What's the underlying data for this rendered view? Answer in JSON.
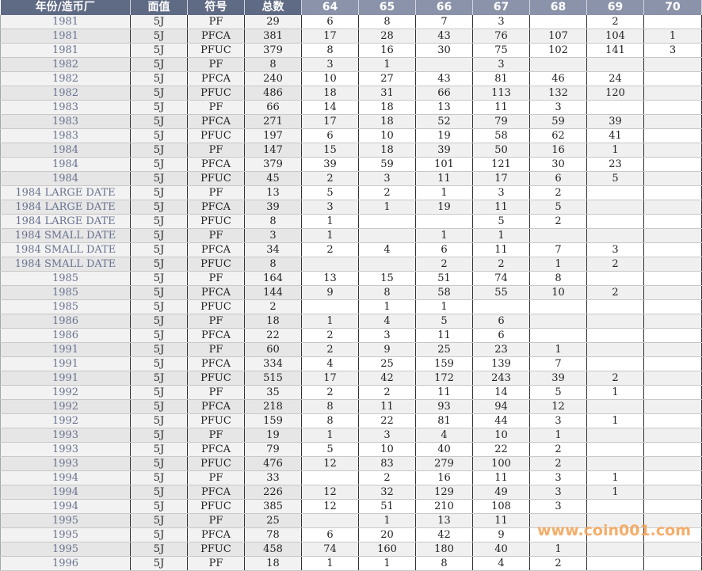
{
  "headers": [
    "年份/造币厂",
    "面值",
    "符号",
    "总数",
    "64",
    "65",
    "66",
    "67",
    "68",
    "69",
    "70"
  ],
  "rows": [
    [
      "1981",
      "5J",
      "PF",
      "29",
      "6",
      "8",
      "7",
      "3",
      "",
      "2",
      ""
    ],
    [
      "1981",
      "5J",
      "PFCA",
      "381",
      "17",
      "28",
      "43",
      "76",
      "107",
      "104",
      "1"
    ],
    [
      "1981",
      "5J",
      "PFUC",
      "379",
      "8",
      "16",
      "30",
      "75",
      "102",
      "141",
      "3"
    ],
    [
      "1982",
      "5J",
      "PF",
      "8",
      "3",
      "1",
      "",
      "3",
      "",
      "",
      ""
    ],
    [
      "1982",
      "5J",
      "PFCA",
      "240",
      "10",
      "27",
      "43",
      "81",
      "46",
      "24",
      ""
    ],
    [
      "1982",
      "5J",
      "PFUC",
      "486",
      "18",
      "31",
      "66",
      "113",
      "132",
      "120",
      ""
    ],
    [
      "1983",
      "5J",
      "PF",
      "66",
      "14",
      "18",
      "13",
      "11",
      "3",
      "",
      ""
    ],
    [
      "1983",
      "5J",
      "PFCA",
      "271",
      "17",
      "18",
      "52",
      "79",
      "59",
      "39",
      ""
    ],
    [
      "1983",
      "5J",
      "PFUC",
      "197",
      "6",
      "10",
      "19",
      "58",
      "62",
      "41",
      ""
    ],
    [
      "1984",
      "5J",
      "PF",
      "147",
      "15",
      "18",
      "39",
      "50",
      "16",
      "1",
      ""
    ],
    [
      "1984",
      "5J",
      "PFCA",
      "379",
      "39",
      "59",
      "101",
      "121",
      "30",
      "23",
      ""
    ],
    [
      "1984",
      "5J",
      "PFUC",
      "45",
      "2",
      "3",
      "11",
      "17",
      "6",
      "5",
      ""
    ],
    [
      "1984 LARGE DATE",
      "5J",
      "PF",
      "13",
      "5",
      "2",
      "1",
      "3",
      "2",
      "",
      ""
    ],
    [
      "1984 LARGE DATE",
      "5J",
      "PFCA",
      "39",
      "3",
      "1",
      "19",
      "11",
      "5",
      "",
      ""
    ],
    [
      "1984 LARGE DATE",
      "5J",
      "PFUC",
      "8",
      "1",
      "",
      "",
      "5",
      "2",
      "",
      ""
    ],
    [
      "1984 SMALL DATE",
      "5J",
      "PF",
      "3",
      "1",
      "",
      "1",
      "1",
      "",
      "",
      ""
    ],
    [
      "1984 SMALL DATE",
      "5J",
      "PFCA",
      "34",
      "2",
      "4",
      "6",
      "11",
      "7",
      "3",
      ""
    ],
    [
      "1984 SMALL DATE",
      "5J",
      "PFUC",
      "8",
      "",
      "",
      "2",
      "2",
      "1",
      "2",
      ""
    ],
    [
      "1985",
      "5J",
      "PF",
      "164",
      "13",
      "15",
      "51",
      "74",
      "8",
      "",
      ""
    ],
    [
      "1985",
      "5J",
      "PFCA",
      "144",
      "9",
      "8",
      "58",
      "55",
      "10",
      "2",
      ""
    ],
    [
      "1985",
      "5J",
      "PFUC",
      "2",
      "",
      "1",
      "1",
      "",
      "",
      "",
      ""
    ],
    [
      "1986",
      "5J",
      "PF",
      "18",
      "1",
      "4",
      "5",
      "6",
      "",
      "",
      ""
    ],
    [
      "1986",
      "5J",
      "PFCA",
      "22",
      "2",
      "3",
      "11",
      "6",
      "",
      "",
      ""
    ],
    [
      "1991",
      "5J",
      "PF",
      "60",
      "2",
      "9",
      "25",
      "23",
      "1",
      "",
      ""
    ],
    [
      "1991",
      "5J",
      "PFCA",
      "334",
      "4",
      "25",
      "159",
      "139",
      "7",
      "",
      ""
    ],
    [
      "1991",
      "5J",
      "PFUC",
      "515",
      "17",
      "42",
      "172",
      "243",
      "39",
      "2",
      ""
    ],
    [
      "1992",
      "5J",
      "PF",
      "35",
      "2",
      "2",
      "11",
      "14",
      "5",
      "1",
      ""
    ],
    [
      "1992",
      "5J",
      "PFCA",
      "218",
      "8",
      "11",
      "93",
      "94",
      "12",
      "",
      ""
    ],
    [
      "1992",
      "5J",
      "PFUC",
      "159",
      "8",
      "22",
      "81",
      "44",
      "3",
      "1",
      ""
    ],
    [
      "1993",
      "5J",
      "PF",
      "19",
      "1",
      "3",
      "4",
      "10",
      "1",
      "",
      ""
    ],
    [
      "1993",
      "5J",
      "PFCA",
      "79",
      "5",
      "10",
      "40",
      "22",
      "2",
      "",
      ""
    ],
    [
      "1993",
      "5J",
      "PFUC",
      "476",
      "12",
      "83",
      "279",
      "100",
      "2",
      "",
      ""
    ],
    [
      "1994",
      "5J",
      "PF",
      "33",
      "",
      "2",
      "16",
      "11",
      "3",
      "1",
      ""
    ],
    [
      "1994",
      "5J",
      "PFCA",
      "226",
      "12",
      "32",
      "129",
      "49",
      "3",
      "1",
      ""
    ],
    [
      "1994",
      "5J",
      "PFUC",
      "385",
      "12",
      "51",
      "210",
      "108",
      "3",
      "",
      ""
    ],
    [
      "1995",
      "5J",
      "PF",
      "25",
      "",
      "1",
      "13",
      "11",
      "",
      "",
      ""
    ],
    [
      "1995",
      "5J",
      "PFCA",
      "78",
      "6",
      "20",
      "42",
      "9",
      "",
      "",
      ""
    ],
    [
      "1995",
      "5J",
      "PFUC",
      "458",
      "74",
      "160",
      "180",
      "40",
      "1",
      "",
      ""
    ],
    [
      "1996",
      "5J",
      "PF",
      "18",
      "1",
      "1",
      "8",
      "4",
      "2",
      "",
      ""
    ]
  ],
  "watermark": "www.coin001.com",
  "colors": {
    "header_main": "#5f6a84",
    "header_grade": "#8a93a9",
    "year_text": "#69728f",
    "watermark": "#f5a55a"
  }
}
